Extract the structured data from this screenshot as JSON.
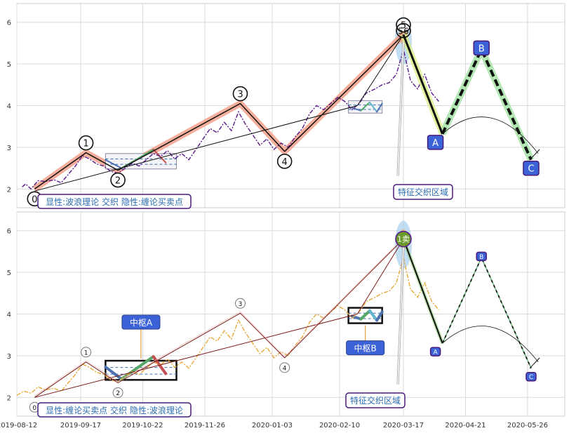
{
  "chart_data": [
    {
      "type": "line",
      "panel": "top",
      "y_ticks": [
        2,
        3,
        4,
        5,
        6
      ],
      "ylim": [
        1.55,
        6.45
      ],
      "grid": true,
      "colors": {
        "price": "#5a1a8a",
        "wave": "#111111",
        "wave_glow": "#f2a08a",
        "box": "#8a8aa0"
      },
      "price_series": [
        [
          "2019-08-15",
          2.05
        ],
        [
          "2019-08-17",
          2.12
        ],
        [
          "2019-08-20",
          2.0
        ],
        [
          "2019-08-24",
          2.2
        ],
        [
          "2019-08-28",
          2.18
        ],
        [
          "2019-09-02",
          2.22
        ],
        [
          "2019-09-06",
          2.15
        ],
        [
          "2019-09-10",
          2.35
        ],
        [
          "2019-09-14",
          2.55
        ],
        [
          "2019-09-18",
          2.8
        ],
        [
          "2019-09-22",
          2.72
        ],
        [
          "2019-09-26",
          2.6
        ],
        [
          "2019-09-30",
          2.55
        ],
        [
          "2019-10-04",
          2.42
        ],
        [
          "2019-10-08",
          2.38
        ],
        [
          "2019-10-12",
          2.5
        ],
        [
          "2019-10-16",
          2.62
        ],
        [
          "2019-10-20",
          2.55
        ],
        [
          "2019-10-24",
          2.7
        ],
        [
          "2019-10-28",
          2.85
        ],
        [
          "2019-11-01",
          2.78
        ],
        [
          "2019-11-05",
          2.92
        ],
        [
          "2019-11-09",
          2.72
        ],
        [
          "2019-11-13",
          2.85
        ],
        [
          "2019-11-17",
          2.7
        ],
        [
          "2019-11-21",
          2.95
        ],
        [
          "2019-11-25",
          3.2
        ],
        [
          "2019-11-29",
          3.45
        ],
        [
          "2019-12-03",
          3.35
        ],
        [
          "2019-12-07",
          3.6
        ],
        [
          "2019-12-11",
          3.4
        ],
        [
          "2019-12-15",
          3.85
        ],
        [
          "2019-12-19",
          3.55
        ],
        [
          "2019-12-23",
          3.3
        ],
        [
          "2019-12-27",
          3.05
        ],
        [
          "2019-12-31",
          3.2
        ],
        [
          "2020-01-04",
          2.95
        ],
        [
          "2020-01-08",
          3.1
        ],
        [
          "2020-01-12",
          3.0
        ],
        [
          "2020-01-16",
          3.25
        ],
        [
          "2020-01-20",
          3.45
        ],
        [
          "2020-01-24",
          3.8
        ],
        [
          "2020-01-28",
          4.0
        ],
        [
          "2020-02-01",
          3.9
        ],
        [
          "2020-02-05",
          4.05
        ],
        [
          "2020-02-09",
          4.2
        ],
        [
          "2020-02-13",
          4.1
        ],
        [
          "2020-02-17",
          3.9
        ],
        [
          "2020-02-21",
          4.05
        ],
        [
          "2020-02-25",
          4.3
        ],
        [
          "2020-03-01",
          4.4
        ],
        [
          "2020-03-05",
          4.5
        ],
        [
          "2020-03-09",
          4.55
        ],
        [
          "2020-03-13",
          4.75
        ],
        [
          "2020-03-17",
          5.35
        ],
        [
          "2020-03-21",
          4.6
        ],
        [
          "2020-03-25",
          4.4
        ],
        [
          "2020-03-29",
          4.75
        ],
        [
          "2020-04-02",
          4.3
        ],
        [
          "2020-04-06",
          4.1
        ]
      ],
      "wave_points": [
        {
          "label": "0",
          "date": "2019-08-22",
          "value": 2.0
        },
        {
          "label": "1",
          "date": "2019-09-20",
          "value": 2.87
        },
        {
          "label": "2",
          "date": "2019-10-08",
          "value": 2.45
        },
        {
          "label": "3",
          "date": "2019-12-16",
          "value": 4.05
        },
        {
          "label": "4",
          "date": "2020-01-10",
          "value": 2.9
        },
        {
          "label": "5",
          "date": "2020-03-17",
          "value": 5.7
        }
      ],
      "wave_labels": [
        "0",
        "1",
        "2",
        "3",
        "4",
        "5"
      ],
      "trend_line": [
        [
          "2019-08-22",
          1.95
        ],
        [
          "2020-02-20",
          4.0
        ],
        [
          "2020-03-17",
          5.7
        ]
      ],
      "centers": [
        {
          "from": "2019-10-01",
          "to": "2019-11-10",
          "low": 2.48,
          "high": 2.85
        },
        {
          "from": "2020-02-15",
          "to": "2020-03-05",
          "low": 3.82,
          "high": 4.12
        }
      ],
      "forecast": [
        {
          "label": "A",
          "date": "2020-04-08",
          "value": 3.32
        },
        {
          "label": "B",
          "date": "2020-04-30",
          "value": 5.35
        },
        {
          "label": "C",
          "date": "2020-05-28",
          "value": 2.7
        }
      ],
      "forecast_labels": [
        "A",
        "B",
        "C"
      ],
      "peak_label": "6",
      "zone_label": "特征交织区域",
      "legend_text": "显性:波浪理论 交织 隐性:缠论买卖点"
    },
    {
      "type": "line",
      "panel": "bottom",
      "y_ticks": [
        2,
        3,
        4,
        5,
        6
      ],
      "ylim": [
        1.55,
        6.45
      ],
      "grid": true,
      "x_ticks": [
        "2019-08-12",
        "2019-09-17",
        "2019-10-22",
        "2019-11-26",
        "2020-01-03",
        "2020-02-10",
        "2020-03-17",
        "2020-04-21",
        "2020-05-26"
      ],
      "colors": {
        "price": "#e8a83a",
        "wave": "#7a1a1a",
        "center_box": "#111111",
        "forecast": "#111111"
      },
      "price_series": [
        [
          "2019-08-12",
          2.05
        ],
        [
          "2019-08-16",
          2.15
        ],
        [
          "2019-08-20",
          2.1
        ],
        [
          "2019-08-24",
          2.25
        ],
        [
          "2019-08-28",
          2.18
        ],
        [
          "2019-09-02",
          2.22
        ],
        [
          "2019-09-06",
          2.15
        ],
        [
          "2019-09-10",
          2.35
        ],
        [
          "2019-09-14",
          2.55
        ],
        [
          "2019-09-18",
          2.8
        ],
        [
          "2019-09-22",
          2.72
        ],
        [
          "2019-09-26",
          2.6
        ],
        [
          "2019-09-30",
          2.55
        ],
        [
          "2019-10-04",
          2.42
        ],
        [
          "2019-10-08",
          2.38
        ],
        [
          "2019-10-12",
          2.5
        ],
        [
          "2019-10-16",
          2.62
        ],
        [
          "2019-10-20",
          2.55
        ],
        [
          "2019-10-24",
          2.7
        ],
        [
          "2019-10-28",
          2.85
        ],
        [
          "2019-11-01",
          2.78
        ],
        [
          "2019-11-05",
          2.92
        ],
        [
          "2019-11-09",
          2.72
        ],
        [
          "2019-11-13",
          2.85
        ],
        [
          "2019-11-17",
          2.7
        ],
        [
          "2019-11-21",
          2.95
        ],
        [
          "2019-11-25",
          3.2
        ],
        [
          "2019-11-29",
          3.45
        ],
        [
          "2019-12-03",
          3.35
        ],
        [
          "2019-12-07",
          3.6
        ],
        [
          "2019-12-11",
          3.4
        ],
        [
          "2019-12-15",
          3.85
        ],
        [
          "2019-12-19",
          3.55
        ],
        [
          "2019-12-23",
          3.3
        ],
        [
          "2019-12-27",
          3.05
        ],
        [
          "2019-12-31",
          3.2
        ],
        [
          "2020-01-04",
          2.95
        ],
        [
          "2020-01-08",
          3.1
        ],
        [
          "2020-01-12",
          3.0
        ],
        [
          "2020-01-16",
          3.25
        ],
        [
          "2020-01-20",
          3.45
        ],
        [
          "2020-01-24",
          3.8
        ],
        [
          "2020-01-28",
          4.0
        ],
        [
          "2020-02-01",
          3.9
        ],
        [
          "2020-02-05",
          4.05
        ],
        [
          "2020-02-09",
          4.2
        ],
        [
          "2020-02-13",
          4.1
        ],
        [
          "2020-02-17",
          3.9
        ],
        [
          "2020-02-21",
          4.05
        ],
        [
          "2020-02-25",
          4.3
        ],
        [
          "2020-03-01",
          4.4
        ],
        [
          "2020-03-05",
          4.5
        ],
        [
          "2020-03-09",
          4.55
        ],
        [
          "2020-03-13",
          4.75
        ],
        [
          "2020-03-17",
          5.35
        ],
        [
          "2020-03-21",
          4.6
        ],
        [
          "2020-03-25",
          4.4
        ],
        [
          "2020-03-29",
          4.75
        ],
        [
          "2020-04-02",
          4.3
        ],
        [
          "2020-04-06",
          4.1
        ]
      ],
      "wave_points": [
        {
          "label": "0",
          "date": "2019-08-22",
          "value": 2.0
        },
        {
          "label": "1",
          "date": "2019-09-20",
          "value": 2.85
        },
        {
          "label": "2",
          "date": "2019-10-08",
          "value": 2.35
        },
        {
          "label": "3",
          "date": "2019-12-16",
          "value": 4.02
        },
        {
          "label": "4",
          "date": "2020-01-10",
          "value": 2.95
        },
        {
          "label": "1卖",
          "date": "2020-03-17",
          "value": 5.8
        }
      ],
      "wave_labels": [
        "0",
        "1",
        "2",
        "3",
        "4"
      ],
      "trend_line": [
        [
          "2019-08-22",
          2.0
        ],
        [
          "2020-02-20",
          4.0
        ],
        [
          "2020-03-17",
          5.8
        ]
      ],
      "centers": [
        {
          "label": "中枢A",
          "from": "2019-10-01",
          "to": "2019-11-10",
          "low": 2.42,
          "high": 2.88
        },
        {
          "label": "中枢B",
          "from": "2020-02-15",
          "to": "2020-03-05",
          "low": 3.78,
          "high": 4.15
        }
      ],
      "center_labels": [
        "中枢A",
        "中枢B"
      ],
      "sell_label": "1卖",
      "forecast": [
        {
          "label": "A",
          "date": "2020-04-08",
          "value": 3.3
        },
        {
          "label": "B",
          "date": "2020-04-30",
          "value": 5.35
        },
        {
          "label": "C",
          "date": "2020-05-28",
          "value": 2.7
        }
      ],
      "forecast_labels": [
        "A",
        "B",
        "C"
      ],
      "zone_label": "特征交织区域",
      "legend_text": "显性:缠论买卖点 交织 隐性:波浪理论"
    }
  ]
}
